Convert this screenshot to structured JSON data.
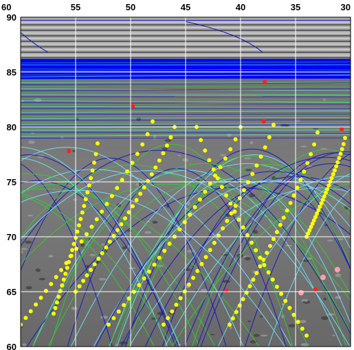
{
  "chart_data": {
    "type": "map",
    "x_axis": {
      "ticks": [
        "60",
        "55",
        "50",
        "45",
        "40",
        "35",
        "30"
      ],
      "range": [
        60,
        30
      ],
      "reversed": true
    },
    "y_axis": {
      "ticks": [
        "90",
        "85",
        "80",
        "75",
        "70",
        "65",
        "60"
      ],
      "range": [
        60,
        90
      ]
    },
    "grid": true,
    "layers": {
      "background": "grayscale planetary surface mosaic",
      "track_colors": {
        "blue": "#1010c8",
        "green": "#30d030",
        "cyan": "#70e8ff",
        "yellow_points": "#ffff00",
        "red_points": "#ff2020",
        "pink_points": "#ff9fb0"
      },
      "polar_cap_color": "#0000ff"
    },
    "red_points": [
      [
        37.8,
        84.1
      ],
      [
        49.8,
        81.9
      ],
      [
        37.9,
        80.5
      ],
      [
        30.8,
        79.8
      ],
      [
        55.6,
        77.8
      ],
      [
        41.3,
        65.1
      ],
      [
        33.2,
        65.2
      ]
    ],
    "pink_points": [
      [
        34.5,
        64.9
      ],
      [
        32.5,
        66.3
      ],
      [
        31.2,
        67.0
      ]
    ]
  }
}
